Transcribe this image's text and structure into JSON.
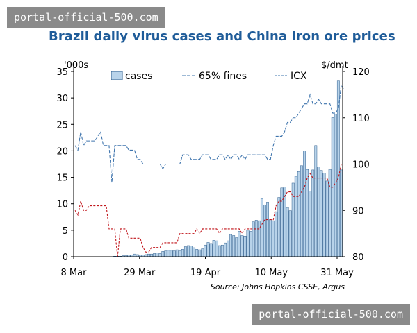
{
  "watermarks": {
    "top": "portal-official-500.com",
    "bottom": "portal-official-500.com"
  },
  "colors": {
    "title": "#1f5c99",
    "bar_fill": "#b8d3ea",
    "bar_stroke": "#2f5f8f",
    "fines_line": "#3e74ad",
    "icx_line": "#c0141a"
  },
  "chart_data": {
    "type": "bar+line",
    "title": "Brazil daily virus cases and China iron ore prices",
    "source": "Source: Johns Hopkins CSSE, Argus",
    "left_axis": {
      "unit": "'000s",
      "range": [
        0,
        35
      ],
      "ticks": [
        "0",
        "5",
        "10",
        "15",
        "20",
        "25",
        "30",
        "35"
      ]
    },
    "right_axis": {
      "unit": "$/dmt",
      "range": [
        80,
        120
      ],
      "ticks": [
        "80",
        "90",
        "100",
        "110",
        "120"
      ]
    },
    "x_axis": {
      "ticks": [
        "8 Mar",
        "29 Mar",
        "19 Apr",
        "10 May",
        "31 May"
      ]
    },
    "legend": {
      "cases": "cases",
      "fines": "65% fines",
      "icx": "ICX"
    },
    "series": [
      {
        "name": "cases",
        "kind": "bar",
        "axis": "left",
        "values": [
          0,
          0,
          0,
          0,
          0,
          0,
          0,
          0,
          0,
          0,
          0,
          0,
          0,
          0,
          0.1,
          0.1,
          0.1,
          0.2,
          0.2,
          0.3,
          0.3,
          0.5,
          0.4,
          0.3,
          0.3,
          0.4,
          0.5,
          0.5,
          0.6,
          0.7,
          0.6,
          1.0,
          1.1,
          1.2,
          1.2,
          1.1,
          1.3,
          1.1,
          1.4,
          1.9,
          2.1,
          2.0,
          1.7,
          1.4,
          1.3,
          1.5,
          2.2,
          2.7,
          2.5,
          3.1,
          3.0,
          2.1,
          2.2,
          2.6,
          3.0,
          4.2,
          4.0,
          3.6,
          4.8,
          4.0,
          3.9,
          5.0,
          4.8,
          6.6,
          6.9,
          6.8,
          11.0,
          9.8,
          10.3,
          7.0,
          6.8,
          8.5,
          11.2,
          13.0,
          13.2,
          9.3,
          8.7,
          13.9,
          15.2,
          16.1,
          17.2,
          20.0,
          16.5,
          12.4,
          16.4,
          21.0,
          17.0,
          16.3,
          15.8,
          14.3,
          16.5,
          26.3,
          26.9,
          33.2,
          16.4
        ]
      },
      {
        "name": "65% fines",
        "kind": "line",
        "axis": "right",
        "values": [
          104,
          103,
          107,
          104,
          105,
          105,
          105,
          105,
          106,
          107,
          104,
          104,
          104,
          96,
          104,
          104,
          104,
          104,
          104,
          103,
          103,
          103,
          101,
          101,
          100,
          100,
          100,
          100,
          100,
          100,
          100,
          99,
          100,
          100,
          100,
          100,
          100,
          100,
          102,
          102,
          102,
          101,
          101,
          101,
          101,
          102,
          102,
          102,
          101,
          101,
          101,
          102,
          102,
          101,
          102,
          101,
          102,
          102,
          101,
          102,
          101,
          102,
          102,
          102,
          102,
          102,
          102,
          102,
          101,
          101,
          104,
          106,
          106,
          106,
          107,
          109,
          109,
          110,
          110,
          111,
          112,
          113,
          113,
          115,
          113,
          113,
          114,
          113,
          113,
          113,
          113,
          111,
          111,
          112,
          117,
          116
        ]
      },
      {
        "name": "ICX",
        "kind": "line",
        "axis": "right",
        "values": [
          90,
          89,
          92,
          90,
          90,
          91,
          91,
          91,
          91,
          91,
          91,
          91,
          86,
          86,
          86,
          80,
          86,
          86,
          86,
          84,
          84,
          84,
          84,
          84,
          82,
          81,
          81,
          82,
          82,
          82,
          82,
          83,
          83,
          83,
          83,
          83,
          83,
          85,
          85,
          85,
          85,
          85,
          85,
          86,
          85,
          86,
          86,
          86,
          86,
          86,
          86,
          85,
          86,
          86,
          86,
          86,
          86,
          86,
          86,
          85,
          86,
          86,
          86,
          86,
          86,
          86,
          87,
          88,
          88,
          88,
          88,
          91,
          92,
          92,
          93,
          94,
          94,
          93,
          93,
          93,
          94,
          95,
          97,
          98,
          97,
          97,
          97,
          97,
          97,
          97,
          95,
          95,
          96,
          97,
          100,
          100
        ]
      }
    ]
  }
}
